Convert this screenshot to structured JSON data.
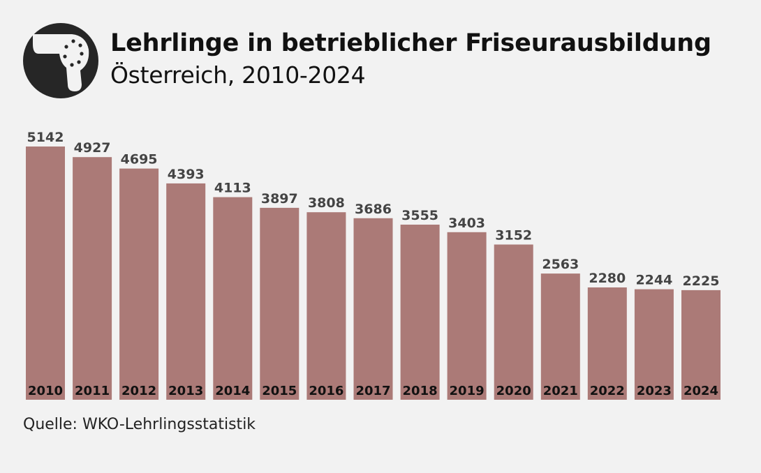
{
  "header": {
    "title": "Lehrlinge in betrieblicher Friseurausbildung",
    "subtitle": "Österreich, 2010-2024",
    "icon": "hair-dryer-icon"
  },
  "source": "Quelle: WKO-Lehrlingsstatistik",
  "colors": {
    "bar": "#ab7a77",
    "background": "#f2f2f2",
    "icon_circle": "#262626"
  },
  "chart_data": {
    "type": "bar",
    "categories": [
      "2010",
      "2011",
      "2012",
      "2013",
      "2014",
      "2015",
      "2016",
      "2017",
      "2018",
      "2019",
      "2020",
      "2021",
      "2022",
      "2023",
      "2024"
    ],
    "values": [
      5142,
      4927,
      4695,
      4393,
      4113,
      3897,
      3808,
      3686,
      3555,
      3403,
      3152,
      2563,
      2280,
      2244,
      2225
    ],
    "title": "Lehrlinge in betrieblicher Friseurausbildung",
    "subtitle": "Österreich, 2010-2024",
    "ylim": [
      0,
      5142
    ],
    "grid": false,
    "legend": "none"
  }
}
